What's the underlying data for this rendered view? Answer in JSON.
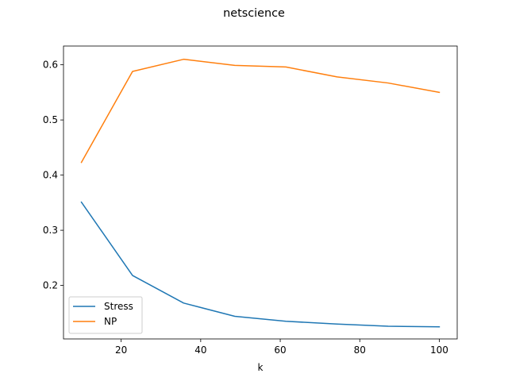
{
  "chart_data": {
    "type": "line",
    "title": "netscience",
    "xlabel": "k",
    "ylabel": "",
    "xlim": [
      5.5,
      104.5
    ],
    "ylim": [
      0.103,
      0.634
    ],
    "x_ticks": [
      20,
      40,
      60,
      80,
      100
    ],
    "y_ticks": [
      0.2,
      0.3,
      0.4,
      0.5,
      0.6
    ],
    "grid": false,
    "legend_position": "lower-left",
    "x": [
      10,
      22.86,
      35.71,
      48.57,
      61.43,
      74.29,
      87.14,
      100
    ],
    "series": [
      {
        "name": "Stress",
        "color": "#1f77b4",
        "values": [
          0.351,
          0.218,
          0.168,
          0.144,
          0.135,
          0.13,
          0.126,
          0.125
        ]
      },
      {
        "name": "NP",
        "color": "#ff7f0e",
        "values": [
          0.423,
          0.588,
          0.61,
          0.599,
          0.596,
          0.578,
          0.567,
          0.55
        ]
      }
    ]
  }
}
